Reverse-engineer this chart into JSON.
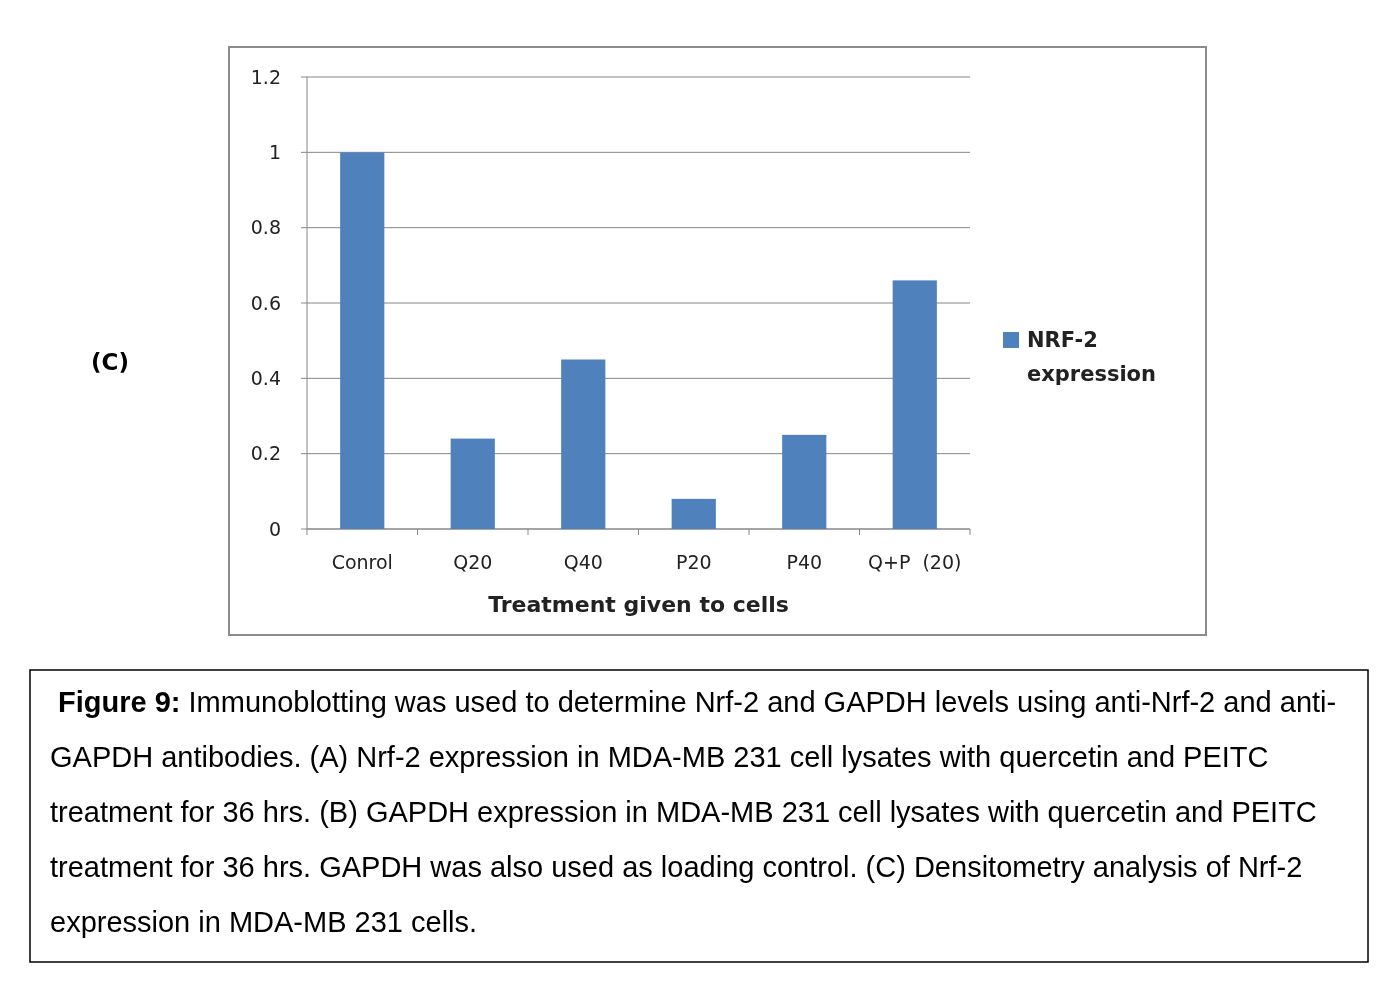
{
  "chart_data": {
    "type": "bar",
    "xlabel": "Treatment given to cells",
    "categories": [
      "Conrol",
      "Q20",
      "Q40",
      "P20",
      "P40",
      "Q+P  (20)"
    ],
    "series": [
      {
        "name": "NRF-2 expression",
        "color": "#4f81bd",
        "values": [
          1.0,
          0.24,
          0.45,
          0.08,
          0.25,
          0.66
        ]
      }
    ],
    "ylim": [
      0,
      1.2
    ],
    "yticks": [
      0,
      0.2,
      0.4,
      0.6,
      0.8,
      1,
      1.2
    ],
    "grid": "y",
    "legend": "right",
    "annotations": [
      "(C)",
      "Figure 9: Immunoblotting was used to determine Nrf-2 and GAPDH levels using anti-Nrf-2 and anti-GAPDH antibodies. (A) Nrf-2 expression in MDA-MB 231 cell lysates with quercetin and PEITC treatment for 36 hrs. (B) GAPDH expression in MDA-MB 231 cell lysates with quercetin and PEITC treatment for 36 hrs. GAPDH was also used as loading control. (C) Densitometry analysis of Nrf-2 expression in MDA-MB 231 cells."
    ]
  }
}
